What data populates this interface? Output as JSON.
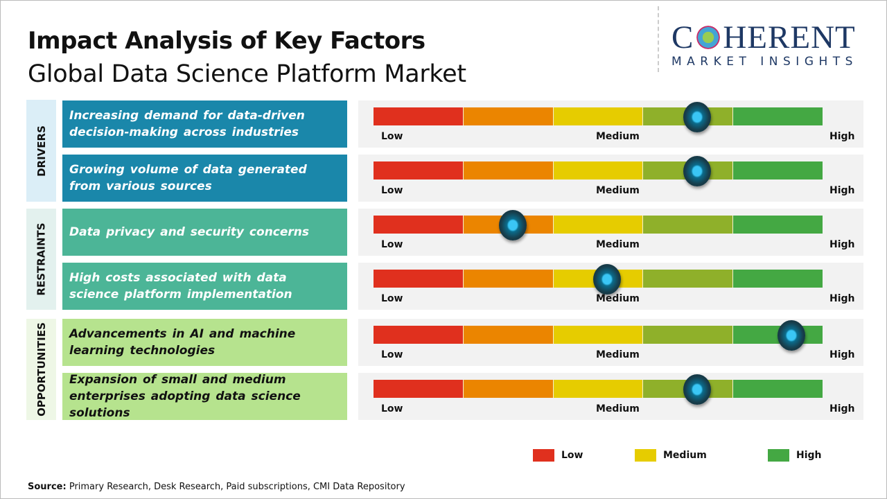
{
  "title": "Impact Analysis of Key Factors",
  "subtitle": "Global Data Science Platform Market",
  "logo": {
    "main": "COHERENT",
    "sub": "MARKET INSIGHTS"
  },
  "chart_data": {
    "type": "table",
    "title": "Impact Analysis of Key Factors",
    "scale_labels": [
      "Low",
      "Medium",
      "High"
    ],
    "segment_colors": [
      "#e0301e",
      "#eb8500",
      "#e6cc00",
      "#8fb02a",
      "#44a843"
    ],
    "categories": [
      {
        "name": "DRIVERS",
        "color": "#1a87aa",
        "bg": "#dbeef7",
        "text_color": "#ffffff",
        "factors": [
          {
            "text": "Increasing demand for data-driven decision-making across industries",
            "impact": 0.72
          },
          {
            "text": "Growing volume of data generated from various sources",
            "impact": 0.72
          }
        ]
      },
      {
        "name": "RESTRAINTS",
        "color": "#4cb597",
        "bg": "#e3f1ee",
        "text_color": "#ffffff",
        "factors": [
          {
            "text": "Data privacy and security concerns",
            "impact": 0.31
          },
          {
            "text": "High costs associated with data science platform implementation",
            "impact": 0.52
          }
        ]
      },
      {
        "name": "OPPORTUNITIES",
        "color": "#b6e38e",
        "bg": "#eef7e6",
        "text_color": "#111111",
        "factors": [
          {
            "text": "Advancements in AI and machine learning technologies",
            "impact": 0.93
          },
          {
            "text": "Expansion of small and medium enterprises adopting data science solutions",
            "impact": 0.72
          }
        ]
      }
    ],
    "legend": [
      {
        "label": "Low",
        "color": "#e0301e"
      },
      {
        "label": "Medium",
        "color": "#e6cc00"
      },
      {
        "label": "High",
        "color": "#44a843"
      }
    ]
  },
  "source": {
    "label": "Source:",
    "text": "Primary Research, Desk Research, Paid subscriptions, CMI Data Repository"
  }
}
